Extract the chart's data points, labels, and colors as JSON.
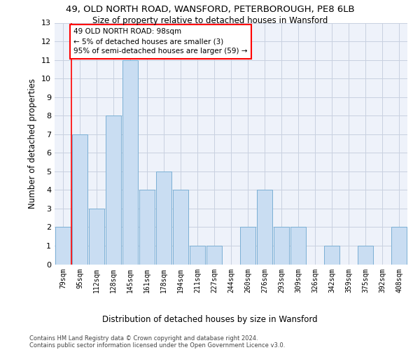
{
  "title1": "49, OLD NORTH ROAD, WANSFORD, PETERBOROUGH, PE8 6LB",
  "title2": "Size of property relative to detached houses in Wansford",
  "xlabel_bottom": "Distribution of detached houses by size in Wansford",
  "ylabel": "Number of detached properties",
  "categories": [
    "79sqm",
    "95sqm",
    "112sqm",
    "128sqm",
    "145sqm",
    "161sqm",
    "178sqm",
    "194sqm",
    "211sqm",
    "227sqm",
    "244sqm",
    "260sqm",
    "276sqm",
    "293sqm",
    "309sqm",
    "326sqm",
    "342sqm",
    "359sqm",
    "375sqm",
    "392sqm",
    "408sqm"
  ],
  "values": [
    2,
    7,
    3,
    8,
    11,
    4,
    5,
    4,
    1,
    1,
    0,
    2,
    4,
    2,
    2,
    0,
    1,
    0,
    1,
    0,
    2
  ],
  "bar_color": "#c9ddf2",
  "bar_edge_color": "#7bafd4",
  "annotation_text": "49 OLD NORTH ROAD: 98sqm\n← 5% of detached houses are smaller (3)\n95% of semi-detached houses are larger (59) →",
  "annotation_box_color": "white",
  "annotation_box_edge_color": "red",
  "vline_color": "red",
  "ylim": [
    0,
    13
  ],
  "yticks": [
    0,
    1,
    2,
    3,
    4,
    5,
    6,
    7,
    8,
    9,
    10,
    11,
    12,
    13
  ],
  "footer1": "Contains HM Land Registry data © Crown copyright and database right 2024.",
  "footer2": "Contains public sector information licensed under the Open Government Licence v3.0.",
  "bg_color": "#eef2fa",
  "grid_color": "#c8d0e0"
}
